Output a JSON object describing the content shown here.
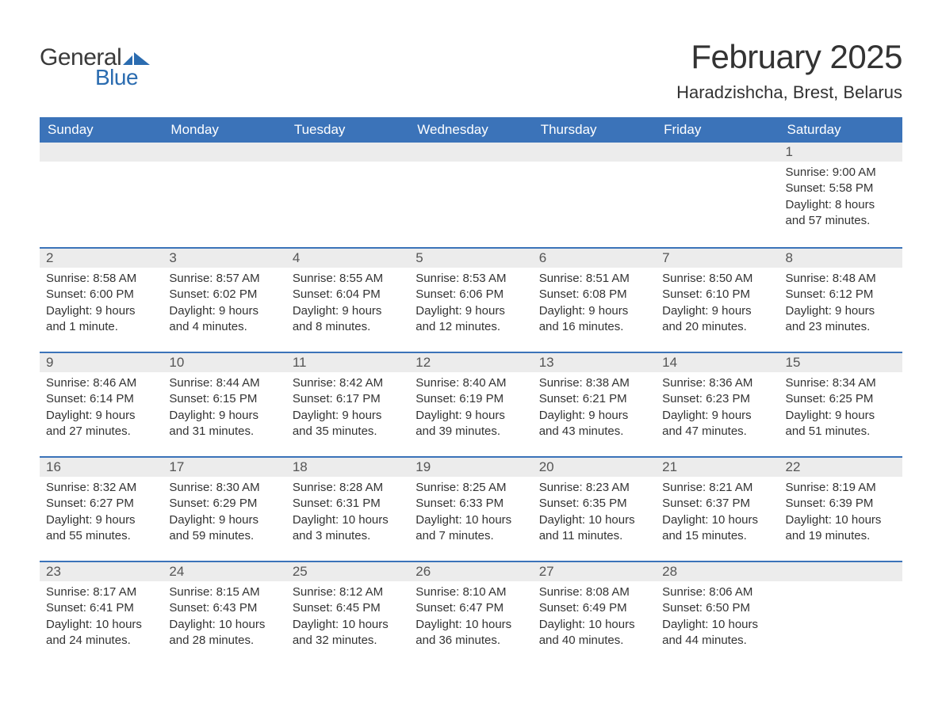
{
  "logo": {
    "text_general": "General",
    "text_blue": "Blue",
    "flag_color": "#2b6cb0",
    "text_color_general": "#3a3a3a",
    "text_color_blue": "#2b6cb0"
  },
  "title": {
    "month_year": "February 2025",
    "location": "Haradzishcha, Brest, Belarus",
    "title_fontsize": 42,
    "location_fontsize": 22
  },
  "calendar": {
    "type": "month-grid",
    "header_bg": "#3b73b9",
    "header_fg": "#ffffff",
    "daynum_bg": "#ececec",
    "daynum_border_top": "#3b73b9",
    "body_bg": "#ffffff",
    "text_color": "#333333",
    "day_header_fontsize": 17,
    "body_fontsize": 15,
    "weekdays": [
      "Sunday",
      "Monday",
      "Tuesday",
      "Wednesday",
      "Thursday",
      "Friday",
      "Saturday"
    ],
    "labels": {
      "sunrise": "Sunrise:",
      "sunset": "Sunset:",
      "daylight": "Daylight:"
    },
    "weeks": [
      [
        null,
        null,
        null,
        null,
        null,
        null,
        {
          "n": "1",
          "sunrise": "9:00 AM",
          "sunset": "5:58 PM",
          "daylight": "8 hours and 57 minutes."
        }
      ],
      [
        {
          "n": "2",
          "sunrise": "8:58 AM",
          "sunset": "6:00 PM",
          "daylight": "9 hours and 1 minute."
        },
        {
          "n": "3",
          "sunrise": "8:57 AM",
          "sunset": "6:02 PM",
          "daylight": "9 hours and 4 minutes."
        },
        {
          "n": "4",
          "sunrise": "8:55 AM",
          "sunset": "6:04 PM",
          "daylight": "9 hours and 8 minutes."
        },
        {
          "n": "5",
          "sunrise": "8:53 AM",
          "sunset": "6:06 PM",
          "daylight": "9 hours and 12 minutes."
        },
        {
          "n": "6",
          "sunrise": "8:51 AM",
          "sunset": "6:08 PM",
          "daylight": "9 hours and 16 minutes."
        },
        {
          "n": "7",
          "sunrise": "8:50 AM",
          "sunset": "6:10 PM",
          "daylight": "9 hours and 20 minutes."
        },
        {
          "n": "8",
          "sunrise": "8:48 AM",
          "sunset": "6:12 PM",
          "daylight": "9 hours and 23 minutes."
        }
      ],
      [
        {
          "n": "9",
          "sunrise": "8:46 AM",
          "sunset": "6:14 PM",
          "daylight": "9 hours and 27 minutes."
        },
        {
          "n": "10",
          "sunrise": "8:44 AM",
          "sunset": "6:15 PM",
          "daylight": "9 hours and 31 minutes."
        },
        {
          "n": "11",
          "sunrise": "8:42 AM",
          "sunset": "6:17 PM",
          "daylight": "9 hours and 35 minutes."
        },
        {
          "n": "12",
          "sunrise": "8:40 AM",
          "sunset": "6:19 PM",
          "daylight": "9 hours and 39 minutes."
        },
        {
          "n": "13",
          "sunrise": "8:38 AM",
          "sunset": "6:21 PM",
          "daylight": "9 hours and 43 minutes."
        },
        {
          "n": "14",
          "sunrise": "8:36 AM",
          "sunset": "6:23 PM",
          "daylight": "9 hours and 47 minutes."
        },
        {
          "n": "15",
          "sunrise": "8:34 AM",
          "sunset": "6:25 PM",
          "daylight": "9 hours and 51 minutes."
        }
      ],
      [
        {
          "n": "16",
          "sunrise": "8:32 AM",
          "sunset": "6:27 PM",
          "daylight": "9 hours and 55 minutes."
        },
        {
          "n": "17",
          "sunrise": "8:30 AM",
          "sunset": "6:29 PM",
          "daylight": "9 hours and 59 minutes."
        },
        {
          "n": "18",
          "sunrise": "8:28 AM",
          "sunset": "6:31 PM",
          "daylight": "10 hours and 3 minutes."
        },
        {
          "n": "19",
          "sunrise": "8:25 AM",
          "sunset": "6:33 PM",
          "daylight": "10 hours and 7 minutes."
        },
        {
          "n": "20",
          "sunrise": "8:23 AM",
          "sunset": "6:35 PM",
          "daylight": "10 hours and 11 minutes."
        },
        {
          "n": "21",
          "sunrise": "8:21 AM",
          "sunset": "6:37 PM",
          "daylight": "10 hours and 15 minutes."
        },
        {
          "n": "22",
          "sunrise": "8:19 AM",
          "sunset": "6:39 PM",
          "daylight": "10 hours and 19 minutes."
        }
      ],
      [
        {
          "n": "23",
          "sunrise": "8:17 AM",
          "sunset": "6:41 PM",
          "daylight": "10 hours and 24 minutes."
        },
        {
          "n": "24",
          "sunrise": "8:15 AM",
          "sunset": "6:43 PM",
          "daylight": "10 hours and 28 minutes."
        },
        {
          "n": "25",
          "sunrise": "8:12 AM",
          "sunset": "6:45 PM",
          "daylight": "10 hours and 32 minutes."
        },
        {
          "n": "26",
          "sunrise": "8:10 AM",
          "sunset": "6:47 PM",
          "daylight": "10 hours and 36 minutes."
        },
        {
          "n": "27",
          "sunrise": "8:08 AM",
          "sunset": "6:49 PM",
          "daylight": "10 hours and 40 minutes."
        },
        {
          "n": "28",
          "sunrise": "8:06 AM",
          "sunset": "6:50 PM",
          "daylight": "10 hours and 44 minutes."
        },
        null
      ]
    ]
  }
}
